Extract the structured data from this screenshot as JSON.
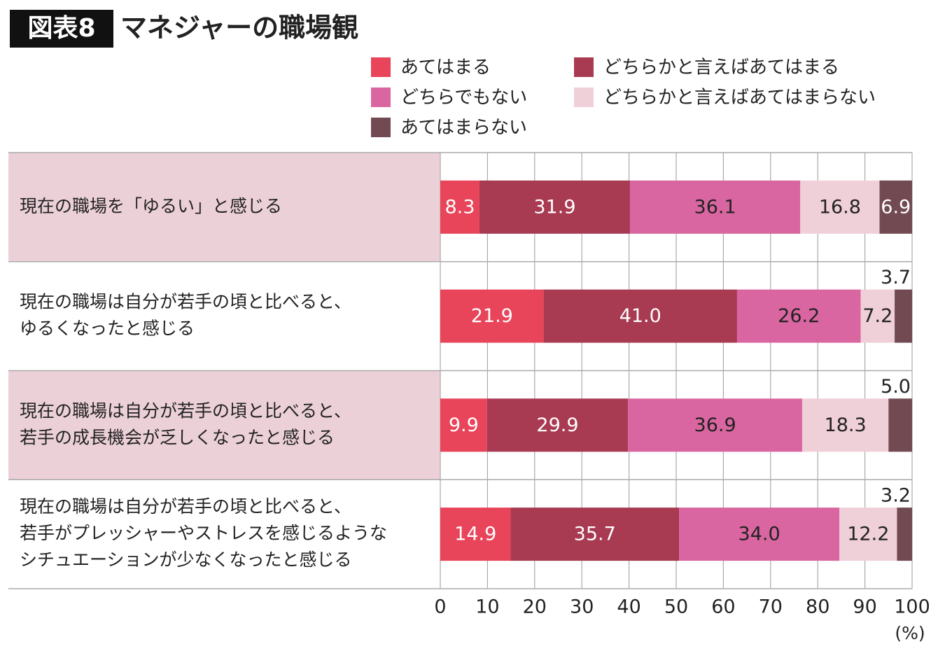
{
  "chart_data": {
    "type": "stacked-bar-horizontal",
    "figure_label": "図表8",
    "title": "マネジャーの職場観",
    "categories": [
      [
        "現在の職場を「ゆるい」と感じる"
      ],
      [
        "現在の職場は自分が若手の頃と比べると、",
        "ゆるくなったと感じる"
      ],
      [
        "現在の職場は自分が若手の頃と比べると、",
        "若手の成長機会が乏しくなったと感じる"
      ],
      [
        "現在の職場は自分が若手の頃と比べると、",
        "若手がプレッシャーやストレスを感じるような",
        "シチュエーションが少なくなったと感じる"
      ]
    ],
    "series": [
      {
        "name": "あてはまる",
        "color": "#e8445a",
        "label_color": "#ffffff",
        "values": [
          8.3,
          21.9,
          9.9,
          14.9
        ],
        "value_labels": [
          "8.3",
          "21.9",
          "9.9",
          "14.9"
        ]
      },
      {
        "name": "どちらかと言えばあてはまる",
        "color": "#a83a52",
        "label_color": "#ffffff",
        "values": [
          31.9,
          41.0,
          29.9,
          35.7
        ],
        "value_labels": [
          "31.9",
          "41.0",
          "29.9",
          "35.7"
        ]
      },
      {
        "name": "どちらでもない",
        "color": "#d966a0",
        "label_color": "#222222",
        "values": [
          36.1,
          26.2,
          36.9,
          34.0
        ],
        "value_labels": [
          "36.1",
          "26.2",
          "36.9",
          "34.0"
        ]
      },
      {
        "name": "どちらかと言えばあてはまらない",
        "color": "#efcfd8",
        "label_color": "#222222",
        "values": [
          16.8,
          7.2,
          18.3,
          12.2
        ],
        "value_labels": [
          "16.8",
          "7.2",
          "18.3",
          "12.2"
        ]
      },
      {
        "name": "あてはまらない",
        "color": "#724a52",
        "label_color": "#ffffff",
        "values": [
          6.9,
          3.7,
          5.0,
          3.2
        ],
        "value_labels": [
          "6.9",
          "3.7",
          "5.0",
          "3.2"
        ]
      }
    ],
    "xlim": [
      0,
      100
    ],
    "xticks": [
      0,
      10,
      20,
      30,
      40,
      50,
      60,
      70,
      80,
      90,
      100
    ],
    "xlabel": "(%)",
    "grid": true
  }
}
